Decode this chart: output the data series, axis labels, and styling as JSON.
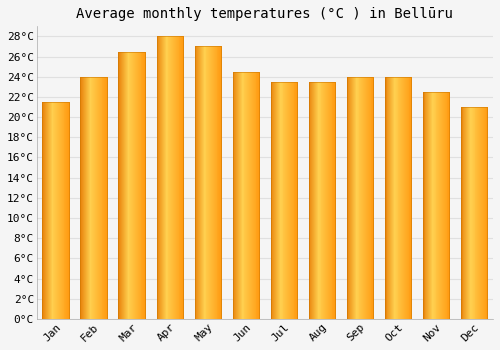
{
  "title": "Average monthly temperatures (°C ) in Bellūru",
  "months": [
    "Jan",
    "Feb",
    "Mar",
    "Apr",
    "May",
    "Jun",
    "Jul",
    "Aug",
    "Sep",
    "Oct",
    "Nov",
    "Dec"
  ],
  "values": [
    21.5,
    24.0,
    26.5,
    28.0,
    27.0,
    24.5,
    23.5,
    23.5,
    24.0,
    24.0,
    22.5,
    21.0
  ],
  "ylim": [
    0,
    29
  ],
  "yticks": [
    0,
    2,
    4,
    6,
    8,
    10,
    12,
    14,
    16,
    18,
    20,
    22,
    24,
    26,
    28
  ],
  "ytick_labels": [
    "0°C",
    "2°C",
    "4°C",
    "6°C",
    "8°C",
    "10°C",
    "12°C",
    "14°C",
    "16°C",
    "18°C",
    "20°C",
    "22°C",
    "24°C",
    "26°C",
    "28°C"
  ],
  "background_color": "#f5f5f5",
  "plot_bg_color": "#f5f5f5",
  "grid_color": "#e0e0e0",
  "title_fontsize": 10,
  "tick_fontsize": 8,
  "bar_width": 0.7,
  "bar_left_color": "#E8820A",
  "bar_mid_color": "#FFD050",
  "bar_right_color": "#FFAA20",
  "bar_outline_color": "#CC7700"
}
